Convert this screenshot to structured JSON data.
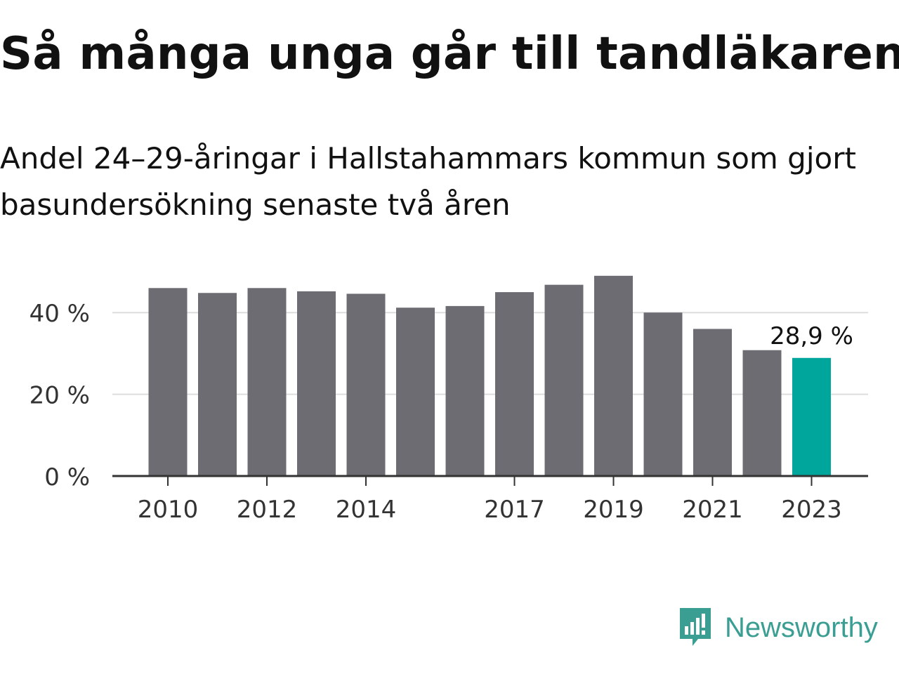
{
  "header": {
    "title": "Så många unga går till tandläkaren",
    "subtitle": "Andel 24–29-åringar i Hallstahammars kommun som gjort basundersökning senaste två åren"
  },
  "chart_data": {
    "type": "bar",
    "categories": [
      "2010",
      "2011",
      "2012",
      "2013",
      "2014",
      "2015",
      "2016",
      "2017",
      "2018",
      "2019",
      "2020",
      "2021",
      "2022",
      "2023"
    ],
    "values": [
      46,
      44.8,
      46,
      45.2,
      44.6,
      41.2,
      41.6,
      45,
      46.8,
      49,
      40,
      36,
      30.8,
      28.9
    ],
    "ylim": [
      0,
      50
    ],
    "yticks": [
      0,
      20,
      40
    ],
    "ytick_labels": [
      "0 %",
      "20 %",
      "40 %"
    ],
    "xtick_labels": [
      "2010",
      "2012",
      "2014",
      "2017",
      "2019",
      "2021",
      "2023"
    ],
    "highlight_index": 13,
    "highlight_label": "28,9 %",
    "colors": {
      "bar": "#6d6c72",
      "highlight": "#00a59b",
      "grid": "#dddddd",
      "axis": "#333333"
    },
    "grid": true
  },
  "brand": {
    "name": "Newsworthy",
    "icon": "newsworthy-logo-icon"
  }
}
